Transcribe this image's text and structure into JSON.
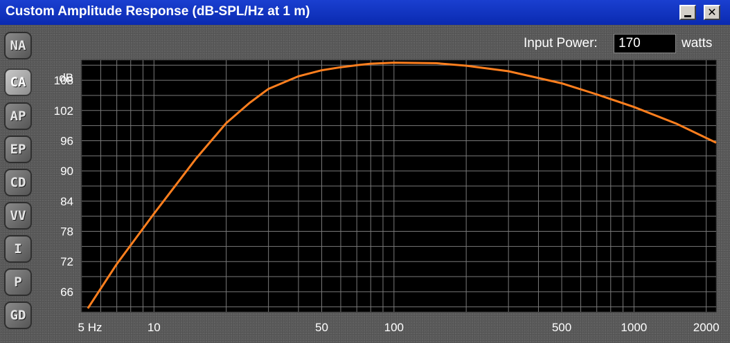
{
  "window": {
    "title": "Custom Amplitude Response (dB-SPL/Hz at 1 m)",
    "minimize_label": "_",
    "close_label": "✕"
  },
  "sidebar": {
    "tabs": [
      {
        "label": "NA",
        "active": false
      },
      {
        "label": "CA",
        "active": true
      },
      {
        "label": "AP",
        "active": false
      },
      {
        "label": "EP",
        "active": false
      },
      {
        "label": "CD",
        "active": false
      },
      {
        "label": "VV",
        "active": false
      },
      {
        "label": "I",
        "active": false
      },
      {
        "label": "P",
        "active": false
      },
      {
        "label": "GD",
        "active": false
      }
    ]
  },
  "input_power": {
    "label": "Input Power:",
    "value": "170",
    "unit": "watts"
  },
  "colors": {
    "curve": "#ff7f1e",
    "plot_bg": "#000000",
    "grid": "#7a7a7a"
  },
  "chart_data": {
    "type": "line",
    "x_scale": "log",
    "xlim": [
      5,
      2200
    ],
    "ylim": [
      62,
      112
    ],
    "ylabel": "dB",
    "y_ticks": [
      66,
      72,
      78,
      84,
      90,
      96,
      102,
      108
    ],
    "x_tick_labels": [
      {
        "value": 5,
        "label": "5 Hz"
      },
      {
        "value": 10,
        "label": "10"
      },
      {
        "value": 50,
        "label": "50"
      },
      {
        "value": 100,
        "label": "100"
      },
      {
        "value": 500,
        "label": "500"
      },
      {
        "value": 1000,
        "label": "1000"
      },
      {
        "value": 2000,
        "label": "2000"
      }
    ],
    "grid": true,
    "series": [
      {
        "x": [
          5.3,
          7,
          10,
          15,
          20,
          25,
          30,
          40,
          50,
          60,
          70,
          80,
          100,
          150,
          200,
          300,
          500,
          700,
          1000,
          1500,
          2200
        ],
        "y": [
          62.7,
          71.5,
          81.5,
          92.5,
          99.5,
          103.5,
          106.3,
          108.8,
          110.0,
          110.6,
          111.0,
          111.3,
          111.5,
          111.4,
          110.9,
          109.8,
          107.4,
          105.2,
          102.7,
          99.4,
          95.6
        ]
      }
    ]
  }
}
